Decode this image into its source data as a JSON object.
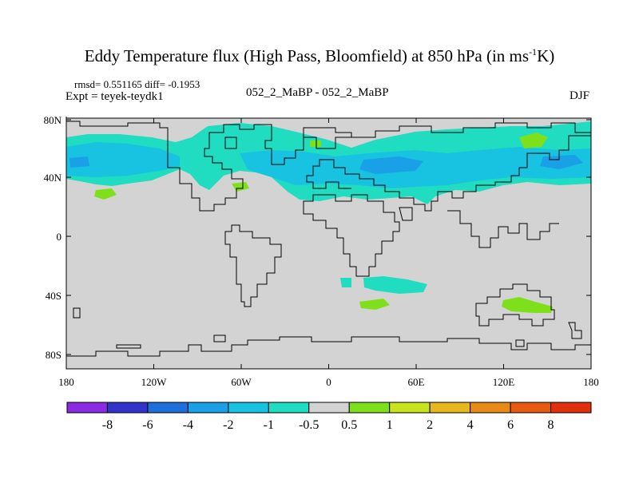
{
  "title": {
    "main": "Eddy Temperature flux (High Pass, Bloomfield) at 850 hPa (in ms",
    "sup": "-1",
    "end": "K)"
  },
  "stats_line": "rmsd= 0.551165 diff= -0.1953",
  "experiment_line": "Expt = teyek-teydk1",
  "experiment_names": "052_2_MaBP - 052_2_MaBP",
  "season": "DJF",
  "axes": {
    "y_ticks": [
      "80N",
      "40N",
      "0",
      "40S",
      "80S"
    ],
    "x_ticks": [
      "180",
      "120W",
      "60W",
      "0",
      "60E",
      "120E",
      "180"
    ]
  },
  "colorbar": {
    "labels": [
      "-8",
      "-6",
      "-4",
      "-2",
      "-1",
      "-0.5",
      "0.5",
      "1",
      "2",
      "4",
      "6",
      "8"
    ],
    "colors": [
      "#8a2be2",
      "#3333cc",
      "#1e6fd9",
      "#1aa0e6",
      "#17c3e0",
      "#20dcc0",
      "#d3d3d3",
      "#7ee01a",
      "#c8e41c",
      "#e6b81c",
      "#e88a16",
      "#e85a12",
      "#e0300c"
    ]
  },
  "colors": {
    "background": "#d3d3d3",
    "outline": "#000000"
  }
}
